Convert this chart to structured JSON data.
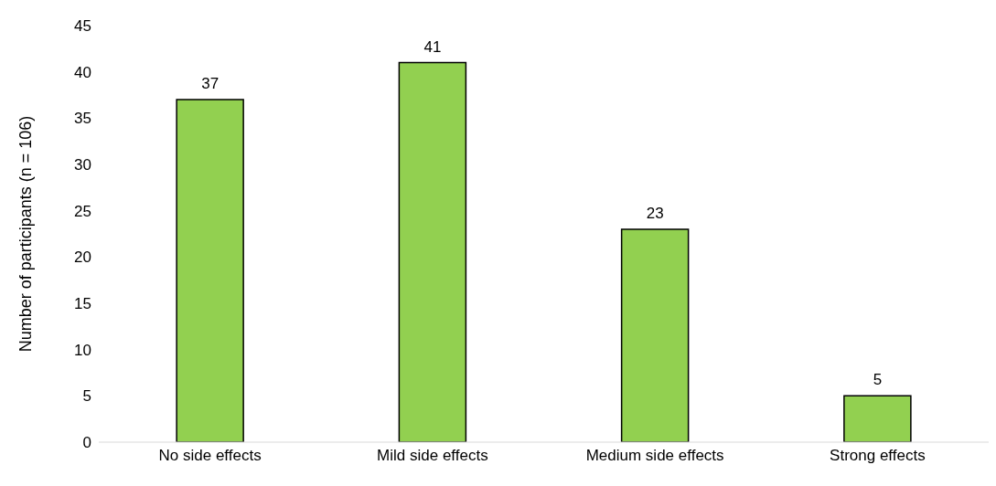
{
  "chart_data": {
    "type": "bar",
    "ylabel": "Number of participants (n = 106)",
    "categories": [
      "No side effects",
      "Mild side effects",
      "Medium side effects",
      "Strong effects"
    ],
    "values": [
      37,
      41,
      23,
      5
    ],
    "color": "#92d050",
    "ylim": [
      0,
      45
    ],
    "yticks": [
      0,
      5,
      10,
      15,
      20,
      25,
      30,
      35,
      40,
      45
    ],
    "grid": false,
    "data_labels": true,
    "legend": false
  }
}
